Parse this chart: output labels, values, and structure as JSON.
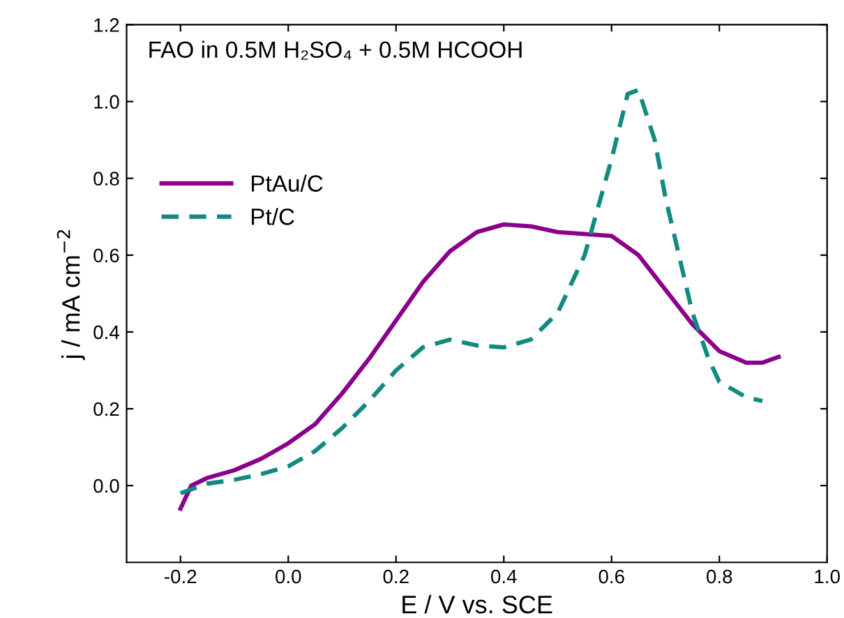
{
  "chart_data": {
    "type": "line",
    "xlabel": "E / V vs. SCE",
    "ylabel": "j / mA cm$^{−2}$",
    "annotations": [
      "FAO in 0.5M H₂SO₄ + 0.5M HCOOH"
    ],
    "xlim": [
      -0.3,
      1.0
    ],
    "xticks": [
      -0.2,
      {
        "value": 0,
        "label": "0.0"
      },
      0.2,
      0.4,
      0.6,
      0.8,
      {
        "value": 1,
        "label": "1.0"
      }
    ],
    "ylim": [
      -0.2,
      1.2
    ],
    "yticks": [
      {
        "value": 0,
        "label": "0.0"
      },
      0.2,
      0.4,
      0.6,
      0.8,
      {
        "value": 1,
        "label": "1.0"
      },
      1.2
    ],
    "grid": false,
    "legend": "left",
    "series": [
      {
        "name": "PtAu/C",
        "color": "#8b008b",
        "line_style": "solid",
        "x": [
          -0.2,
          -0.18,
          -0.15,
          -0.1,
          -0.05,
          0.0,
          0.05,
          0.1,
          0.15,
          0.2,
          0.25,
          0.3,
          0.35,
          0.4,
          0.45,
          0.5,
          0.55,
          0.6,
          0.65,
          0.7,
          0.75,
          0.8,
          0.85,
          0.88,
          0.91
        ],
        "values": [
          -0.06,
          0.0,
          0.02,
          0.04,
          0.07,
          0.11,
          0.16,
          0.24,
          0.33,
          0.43,
          0.53,
          0.61,
          0.66,
          0.68,
          0.675,
          0.66,
          0.655,
          0.65,
          0.6,
          0.51,
          0.42,
          0.35,
          0.32,
          0.32,
          0.335
        ]
      },
      {
        "name": "Pt/C",
        "color": "#138a80",
        "line_style": "dashed",
        "x": [
          -0.2,
          -0.15,
          -0.1,
          -0.05,
          0.0,
          0.05,
          0.1,
          0.15,
          0.2,
          0.25,
          0.3,
          0.35,
          0.4,
          0.45,
          0.5,
          0.55,
          0.6,
          0.63,
          0.65,
          0.68,
          0.7,
          0.75,
          0.78,
          0.8,
          0.85,
          0.88
        ],
        "values": [
          -0.02,
          0.005,
          0.015,
          0.03,
          0.05,
          0.09,
          0.15,
          0.22,
          0.3,
          0.36,
          0.38,
          0.365,
          0.36,
          0.38,
          0.45,
          0.6,
          0.85,
          1.02,
          1.03,
          0.9,
          0.75,
          0.45,
          0.33,
          0.27,
          0.23,
          0.22
        ]
      }
    ]
  }
}
